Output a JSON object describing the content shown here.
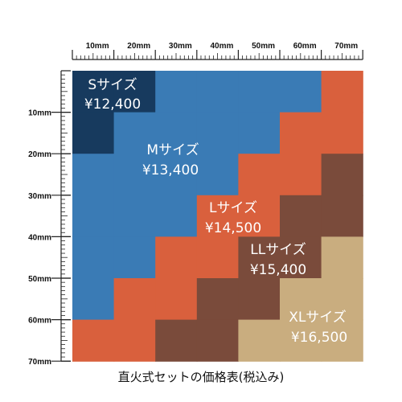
{
  "colors": {
    "S": "#173a5e",
    "M": "#3a7bb5",
    "L": "#d9603d",
    "LL": "#7a4b3b",
    "XL": "#c9ad7f",
    "ruler": "#222222"
  },
  "ruler": {
    "top_labels": [
      "10mm",
      "20mm",
      "30mm",
      "40mm",
      "50mm",
      "60mm",
      "70mm"
    ],
    "left_labels": [
      "10mm",
      "20mm",
      "30mm",
      "40mm",
      "50mm",
      "60mm",
      "70mm"
    ]
  },
  "sizes": {
    "S": {
      "name": "Sサイズ",
      "price": "¥12,400"
    },
    "M": {
      "name": "Mサイズ",
      "price": "¥13,400"
    },
    "L": {
      "name": "Lサイズ",
      "price": "¥14,500"
    },
    "LL": {
      "name": "LLサイズ",
      "price": "¥15,400"
    },
    "XL": {
      "name": "XLサイズ",
      "price": "¥16,500"
    }
  },
  "caption": "直火式セットの価格表(税込み)"
}
